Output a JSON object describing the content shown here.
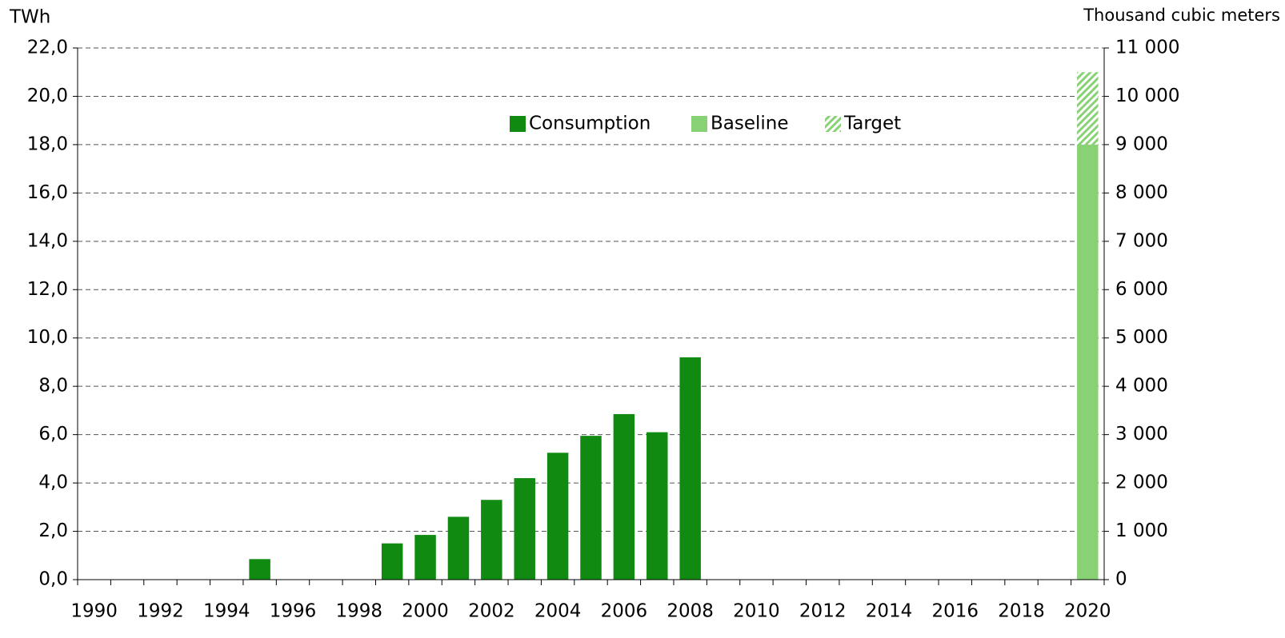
{
  "chart_data": {
    "type": "bar",
    "y_label": "TWh",
    "y2_label": "Thousand cubic meters",
    "categories": [
      "1990",
      null,
      "1992",
      null,
      "1994",
      null,
      "1996",
      null,
      "1998",
      null,
      "2000",
      null,
      "2002",
      null,
      "2004",
      null,
      "2006",
      null,
      "2008",
      null,
      "2010",
      null,
      "2012",
      null,
      "2014",
      null,
      "2016",
      null,
      "2018",
      null,
      "2020"
    ],
    "series": [
      {
        "name": "Consumption",
        "color": "#118a11",
        "values": [
          null,
          null,
          null,
          null,
          null,
          0.85,
          null,
          null,
          null,
          1.5,
          1.85,
          2.6,
          3.3,
          4.2,
          5.25,
          5.95,
          6.85,
          6.1,
          9.2,
          null,
          null,
          null,
          null,
          null,
          null,
          null,
          null,
          null,
          null,
          null,
          null
        ]
      },
      {
        "name": "Baseline",
        "color": "#88d174",
        "values": [
          null,
          null,
          null,
          null,
          null,
          null,
          null,
          null,
          null,
          null,
          null,
          null,
          null,
          null,
          null,
          null,
          null,
          null,
          null,
          null,
          null,
          null,
          null,
          null,
          null,
          null,
          null,
          null,
          null,
          null,
          18.0
        ]
      },
      {
        "name": "Target",
        "color": "#88d174",
        "hatch": true,
        "values": [
          null,
          null,
          null,
          null,
          null,
          null,
          null,
          null,
          null,
          null,
          null,
          null,
          null,
          null,
          null,
          null,
          null,
          null,
          null,
          null,
          null,
          null,
          null,
          null,
          null,
          null,
          null,
          null,
          null,
          null,
          3.0
        ]
      },
      {
        "type": "line",
        "color": "#000000",
        "dashed": true,
        "values": [
          null,
          null,
          null,
          null,
          null,
          null,
          null,
          null,
          null,
          null,
          null,
          null,
          null,
          null,
          null,
          null,
          null,
          null,
          9.2,
          null,
          null,
          null,
          null,
          null,
          null,
          null,
          null,
          null,
          null,
          null,
          21.0
        ]
      },
      {
        "type": "line",
        "color": "#000000",
        "dashed": true,
        "values": [
          null,
          null,
          null,
          null,
          null,
          null,
          null,
          null,
          null,
          null,
          null,
          null,
          null,
          null,
          null,
          null,
          null,
          null,
          9.2,
          null,
          null,
          null,
          null,
          null,
          null,
          null,
          null,
          null,
          null,
          null,
          18.0
        ]
      }
    ],
    "ylim": [
      0,
      22
    ],
    "yticks": [
      {
        "value": 0,
        "label": "0,0"
      },
      {
        "value": 2,
        "label": "2,0"
      },
      {
        "value": 4,
        "label": "4,0"
      },
      {
        "value": 6,
        "label": "6,0"
      },
      {
        "value": 8,
        "label": "8,0"
      },
      {
        "value": 10,
        "label": "10,0"
      },
      {
        "value": 12,
        "label": "12,0"
      },
      {
        "value": 14,
        "label": "14,0"
      },
      {
        "value": 16,
        "label": "16,0"
      },
      {
        "value": 18,
        "label": "18,0"
      },
      {
        "value": 20,
        "label": "20,0"
      },
      {
        "value": 22,
        "label": "22,0"
      }
    ],
    "y2lim": [
      0,
      11000
    ],
    "y2ticks": [
      0,
      {
        "value": 1000,
        "label": "1 000"
      },
      {
        "value": 2000,
        "label": "2 000"
      },
      {
        "value": 3000,
        "label": "3 000"
      },
      {
        "value": 4000,
        "label": "4 000"
      },
      {
        "value": 5000,
        "label": "5 000"
      },
      {
        "value": 6000,
        "label": "6 000"
      },
      {
        "value": 7000,
        "label": "7 000"
      },
      {
        "value": 8000,
        "label": "8 000"
      },
      {
        "value": 9000,
        "label": "9 000"
      },
      {
        "value": 10000,
        "label": "10 000"
      },
      {
        "value": 11000,
        "label": "11 000"
      }
    ],
    "grid": true,
    "legend": "top"
  }
}
